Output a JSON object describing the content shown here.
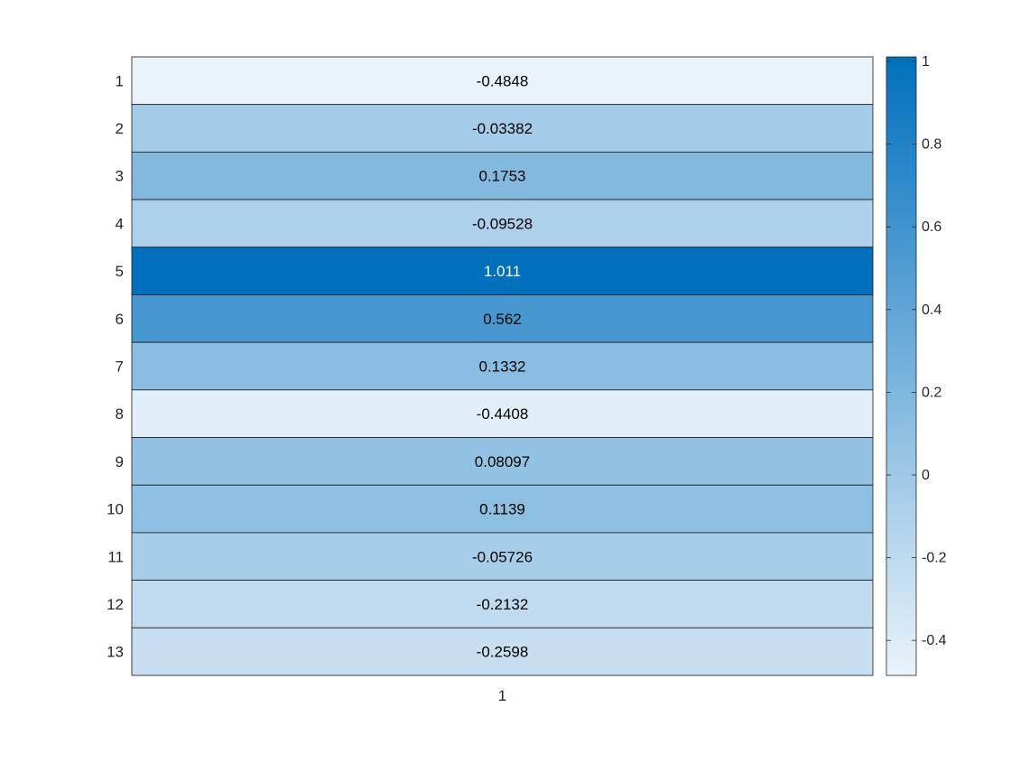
{
  "chart_data": {
    "type": "heatmap",
    "title": "",
    "xlabel": "",
    "ylabel": "",
    "x_categories": [
      "1"
    ],
    "y_categories": [
      "1",
      "2",
      "3",
      "4",
      "5",
      "6",
      "7",
      "8",
      "9",
      "10",
      "11",
      "12",
      "13"
    ],
    "values": [
      [
        "-0.4848"
      ],
      [
        "-0.03382"
      ],
      [
        "0.1753"
      ],
      [
        "-0.09528"
      ],
      [
        "1.011"
      ],
      [
        "0.562"
      ],
      [
        "0.1332"
      ],
      [
        "-0.4408"
      ],
      [
        "0.08097"
      ],
      [
        "0.1139"
      ],
      [
        "-0.05726"
      ],
      [
        "-0.2132"
      ],
      [
        "-0.2598"
      ]
    ],
    "colorbar": {
      "limits": [
        -0.4848,
        1.011
      ],
      "ticks": [
        "1",
        "0.8",
        "0.6",
        "0.4",
        "0.2",
        "0",
        "-0.2",
        "-0.4"
      ],
      "position": "right"
    },
    "colormap": {
      "low": "#eaf3fa",
      "high": "#0070bd"
    },
    "cell_text_colors": {
      "dark": "#000000",
      "light": "#ffffff"
    },
    "grid": true
  }
}
